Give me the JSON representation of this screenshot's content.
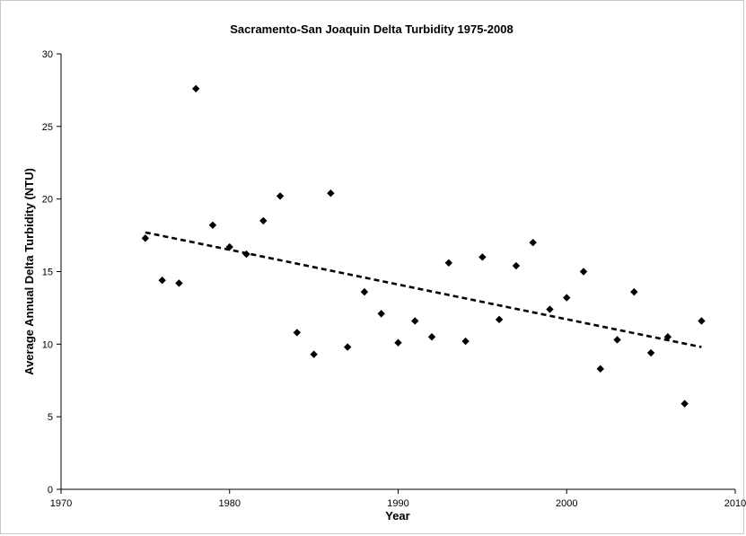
{
  "chart_data": {
    "type": "scatter",
    "title": "Sacramento-San Joaquin Delta Turbidity 1975-2008",
    "xlabel": "Year",
    "ylabel": "Average Annual Delta Turbidity (NTU)",
    "xlim": [
      1970,
      2010
    ],
    "ylim": [
      0,
      30
    ],
    "x_ticks": [
      1970,
      1980,
      1990,
      2000,
      2010
    ],
    "y_ticks": [
      0,
      5,
      10,
      15,
      20,
      25,
      30
    ],
    "grid": false,
    "legend": "none",
    "marker": "diamond",
    "marker_color": "#000000",
    "series": [
      {
        "x": [
          1975,
          1976,
          1977,
          1978,
          1979,
          1980,
          1981,
          1982,
          1983,
          1984,
          1985,
          1986,
          1987,
          1988,
          1989,
          1990,
          1991,
          1992,
          1993,
          1994,
          1995,
          1996,
          1997,
          1998,
          1999,
          2000,
          2001,
          2002,
          2003,
          2004,
          2005,
          2006,
          2007,
          2008
        ],
        "y": [
          17.3,
          14.4,
          14.2,
          27.6,
          18.2,
          16.7,
          16.2,
          18.5,
          20.2,
          10.8,
          9.3,
          20.4,
          9.8,
          13.6,
          12.1,
          10.1,
          11.6,
          10.5,
          15.6,
          10.2,
          16.0,
          11.7,
          15.4,
          17.0,
          12.4,
          13.2,
          15.0,
          8.3,
          10.3,
          13.6,
          9.4,
          10.5,
          5.9,
          11.6
        ]
      }
    ],
    "trendline": {
      "style": "dashed",
      "x": [
        1975,
        2008
      ],
      "y": [
        17.7,
        9.8
      ]
    }
  }
}
